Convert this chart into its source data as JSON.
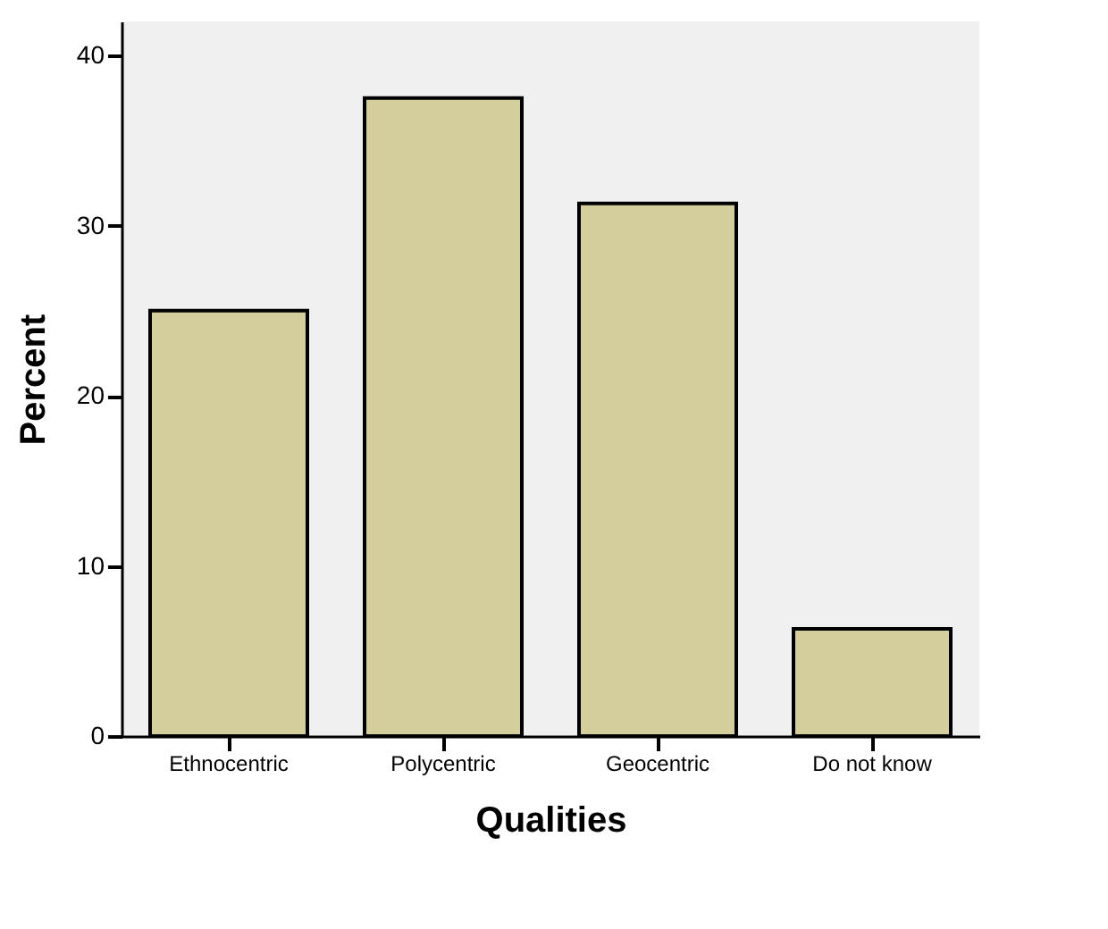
{
  "chart_data": {
    "type": "bar",
    "xlabel": "Qualities",
    "ylabel": "Percent",
    "categories": [
      "Ethnocentric",
      "Polycentric",
      "Geocentric",
      "Do not know"
    ],
    "values": [
      25,
      37.5,
      31.3,
      6.3
    ],
    "color": "#d3ce9b",
    "ylim": [
      0,
      42
    ],
    "yticks": [
      0,
      10,
      20,
      30,
      40
    ],
    "grid": false
  }
}
